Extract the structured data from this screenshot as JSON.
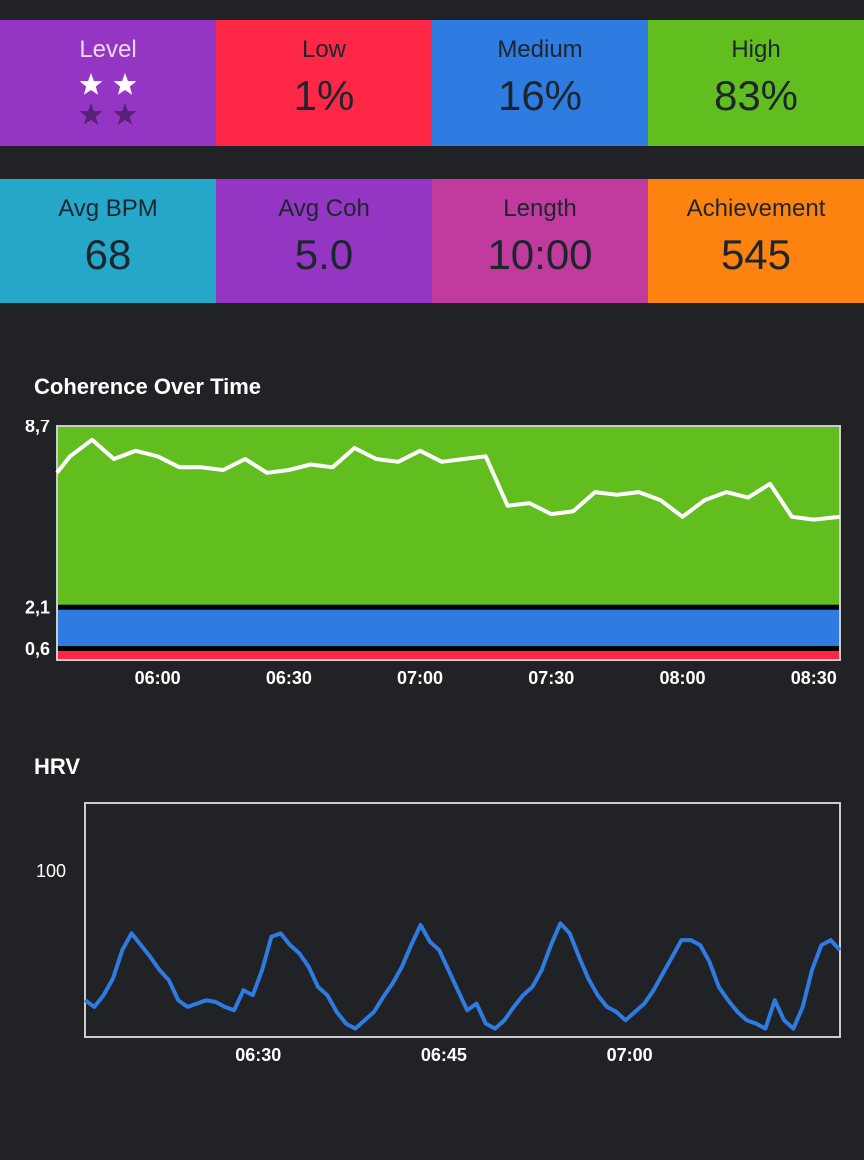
{
  "summary_row1": [
    {
      "label": "Level",
      "value": "",
      "color": "#9535c4"
    },
    {
      "label": "Low",
      "value": "1%",
      "color": "#fe2746"
    },
    {
      "label": "Medium",
      "value": "16%",
      "color": "#2e7be2"
    },
    {
      "label": "High",
      "value": "83%",
      "color": "#62be1f"
    }
  ],
  "level_stars": {
    "earned": 2,
    "total": 4,
    "earned_color": "#ffffff",
    "unearned_color": "#5a2078"
  },
  "summary_row2": [
    {
      "label": "Avg BPM",
      "value": "68",
      "color": "#24a7c8"
    },
    {
      "label": "Avg Coh",
      "value": "5.0",
      "color": "#9535c4"
    },
    {
      "label": "Length",
      "value": "10:00",
      "color": "#c13a9d"
    },
    {
      "label": "Achievement",
      "value": "545",
      "color": "#fd8310"
    }
  ],
  "coherence_chart": {
    "title": "Coherence Over Time"
  },
  "hrv_chart": {
    "title": "HRV"
  },
  "chart_data": [
    {
      "type": "line",
      "title": "Coherence Over Time",
      "x_ticks": [
        "06:00",
        "06:30",
        "07:00",
        "07:30",
        "08:00",
        "08:30"
      ],
      "y_ticks": [
        "8,7",
        "2,1",
        "0,6"
      ],
      "y_range": [
        0.2,
        8.7
      ],
      "bands": [
        {
          "name": "high",
          "from": 2.1,
          "to": 8.7,
          "color": "#62be1f"
        },
        {
          "name": "medium",
          "from": 0.6,
          "to": 2.1,
          "color": "#2e7be2"
        },
        {
          "name": "low",
          "from": 0.2,
          "to": 0.6,
          "color": "#fe2746"
        }
      ],
      "line_color": "#ffffff",
      "x_minutes_range": [
        -23,
        156
      ],
      "points": [
        [
          -23,
          7.0
        ],
        [
          -20,
          7.6
        ],
        [
          -15,
          8.2
        ],
        [
          -10,
          7.5
        ],
        [
          -5,
          7.8
        ],
        [
          0,
          7.6
        ],
        [
          5,
          7.2
        ],
        [
          10,
          7.2
        ],
        [
          15,
          7.1
        ],
        [
          20,
          7.5
        ],
        [
          25,
          7.0
        ],
        [
          30,
          7.1
        ],
        [
          35,
          7.3
        ],
        [
          40,
          7.2
        ],
        [
          45,
          7.9
        ],
        [
          50,
          7.5
        ],
        [
          55,
          7.4
        ],
        [
          60,
          7.8
        ],
        [
          65,
          7.4
        ],
        [
          70,
          7.5
        ],
        [
          75,
          7.6
        ],
        [
          80,
          5.8
        ],
        [
          85,
          5.9
        ],
        [
          90,
          5.5
        ],
        [
          95,
          5.6
        ],
        [
          100,
          6.3
        ],
        [
          105,
          6.2
        ],
        [
          110,
          6.3
        ],
        [
          115,
          6.0
        ],
        [
          120,
          5.4
        ],
        [
          125,
          6.0
        ],
        [
          130,
          6.3
        ],
        [
          135,
          6.1
        ],
        [
          140,
          6.6
        ],
        [
          145,
          5.4
        ],
        [
          150,
          5.3
        ],
        [
          156,
          5.4
        ]
      ]
    },
    {
      "type": "line",
      "title": "HRV",
      "x_ticks": [
        "06:30",
        "06:45",
        "07:00"
      ],
      "y_ticks": [
        "100"
      ],
      "line_color": "#2e7be2",
      "x_minutes_range": [
        -14,
        47
      ],
      "y_range": [
        0,
        140
      ],
      "values": [
        22,
        18,
        25,
        35,
        52,
        62,
        55,
        48,
        40,
        34,
        22,
        18,
        20,
        22,
        21,
        18,
        16,
        28,
        25,
        40,
        60,
        62,
        55,
        50,
        42,
        30,
        25,
        15,
        8,
        5,
        10,
        15,
        24,
        32,
        42,
        55,
        67,
        57,
        52,
        40,
        28,
        16,
        20,
        8,
        5,
        10,
        18,
        25,
        30,
        40,
        55,
        68,
        62,
        48,
        35,
        25,
        18,
        15,
        10,
        15,
        20,
        28,
        38,
        48,
        58,
        58,
        55,
        45,
        30,
        22,
        15,
        10,
        8,
        5,
        22,
        10,
        5,
        18,
        40,
        55,
        58,
        52
      ]
    }
  ]
}
